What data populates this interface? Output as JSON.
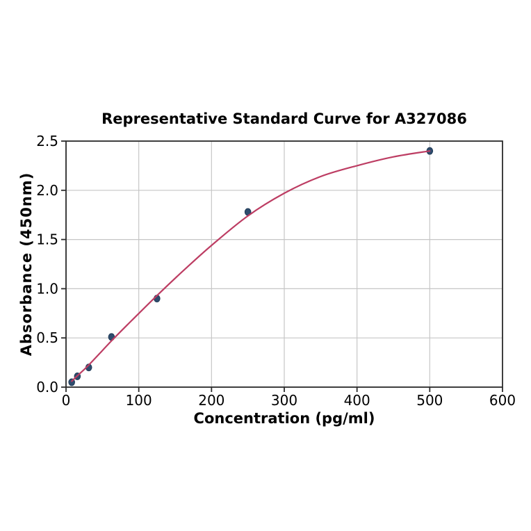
{
  "chart_data": {
    "type": "scatter",
    "title": "Representative Standard Curve for A327086",
    "xlabel": "Concentration (pg/ml)",
    "ylabel": "Absorbance (450nm)",
    "xlim": [
      0,
      600
    ],
    "ylim": [
      0,
      2.5
    ],
    "x_ticks": [
      0,
      100,
      200,
      300,
      400,
      500,
      600
    ],
    "x_tick_labels": [
      "0",
      "100",
      "200",
      "300",
      "400",
      "500",
      "600"
    ],
    "y_ticks": [
      0.0,
      0.5,
      1.0,
      1.5,
      2.0,
      2.5
    ],
    "y_tick_labels": [
      "0.0",
      "0.5",
      "1.0",
      "1.5",
      "2.0",
      "2.5"
    ],
    "grid": true,
    "legend": "none",
    "series": [
      {
        "name": "standards",
        "style": "scatter",
        "points": [
          [
            7.8,
            0.05
          ],
          [
            15.6,
            0.11
          ],
          [
            31.25,
            0.2
          ],
          [
            62.5,
            0.51
          ],
          [
            125,
            0.9
          ],
          [
            250,
            1.78
          ],
          [
            500,
            2.4
          ]
        ]
      },
      {
        "name": "fitted-curve",
        "style": "line",
        "points": [
          [
            7.8,
            0.06
          ],
          [
            15.6,
            0.115
          ],
          [
            31.25,
            0.225
          ],
          [
            62.5,
            0.47
          ],
          [
            90,
            0.675
          ],
          [
            125,
            0.93
          ],
          [
            160,
            1.175
          ],
          [
            200,
            1.44
          ],
          [
            250,
            1.74
          ],
          [
            300,
            1.97
          ],
          [
            350,
            2.14
          ],
          [
            400,
            2.25
          ],
          [
            450,
            2.34
          ],
          [
            500,
            2.4
          ]
        ]
      }
    ],
    "colors": {
      "curve": "#bd3d63",
      "marker_fill": "#2f4d6e",
      "marker_edge": "#1f3a57",
      "grid": "#c6c6c6",
      "spine": "#2b2b2b",
      "text": "#000000",
      "background": "#ffffff"
    }
  }
}
